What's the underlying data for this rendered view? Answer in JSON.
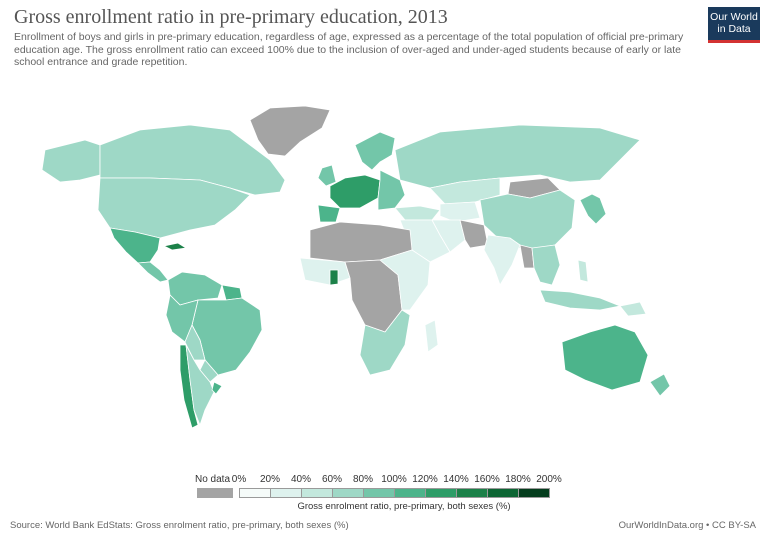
{
  "header": {
    "title": "Gross enrollment ratio in pre-primary education, 2013",
    "subtitle": "Enrollment of boys and girls in pre-primary education, regardless of age, expressed as a percentage of the total population of official pre-primary education age. The gross enrollment ratio can exceed 100% due to the inclusion of over-aged and under-aged students because of early or late school entrance and grade repetition.",
    "logo_line1": "Our World",
    "logo_line2": "in Data"
  },
  "legend": {
    "nodata_label": "No data",
    "tick_labels": [
      "0%",
      "20%",
      "40%",
      "60%",
      "80%",
      "100%",
      "120%",
      "140%",
      "160%",
      "180%",
      "200%"
    ],
    "bin_colors": [
      "#f5fbf9",
      "#def2ee",
      "#c3e8dd",
      "#9ed8c6",
      "#73c6a9",
      "#4cb48b",
      "#2e9d68",
      "#1c8149",
      "#0d6634",
      "#043d1d"
    ],
    "nodata_color": "#a4a4a4",
    "caption": "Gross enrolment ratio, pre-primary, both sexes (%)"
  },
  "footer": {
    "source": "Source: World Bank EdStats: Gross enrolment ratio, pre-primary, both sexes (%)",
    "credit": "OurWorldInData.org • CC BY-SA"
  },
  "colors": {
    "nodata": "#a4a4a4",
    "b0": "#f5fbf9",
    "b1": "#def2ee",
    "b2": "#c3e8dd",
    "b3": "#9ed8c6",
    "b4": "#73c6a9",
    "b5": "#4cb48b",
    "b6": "#2e9d68",
    "b7": "#1c8149"
  },
  "regions": [
    {
      "name": "greenland",
      "bin": "nodata"
    },
    {
      "name": "canada",
      "bin": "b3"
    },
    {
      "name": "usa",
      "bin": "b3"
    },
    {
      "name": "alaska",
      "bin": "b3"
    },
    {
      "name": "mexico",
      "bin": "b5"
    },
    {
      "name": "central-america",
      "bin": "b4"
    },
    {
      "name": "cuba",
      "bin": "b7"
    },
    {
      "name": "colombia-venezuela",
      "bin": "b4"
    },
    {
      "name": "guianas",
      "bin": "b5"
    },
    {
      "name": "brazil",
      "bin": "b4"
    },
    {
      "name": "peru",
      "bin": "b4"
    },
    {
      "name": "bolivia",
      "bin": "b3"
    },
    {
      "name": "paraguay",
      "bin": "b3"
    },
    {
      "name": "argentina",
      "bin": "b3"
    },
    {
      "name": "chile",
      "bin": "b6"
    },
    {
      "name": "uruguay",
      "bin": "b5"
    },
    {
      "name": "russia",
      "bin": "b3"
    },
    {
      "name": "scandinavia",
      "bin": "b4"
    },
    {
      "name": "uk-ireland",
      "bin": "b4"
    },
    {
      "name": "western-europe",
      "bin": "b6"
    },
    {
      "name": "iberia",
      "bin": "b5"
    },
    {
      "name": "eastern-europe",
      "bin": "b4"
    },
    {
      "name": "kazakhstan",
      "bin": "b2"
    },
    {
      "name": "central-asia",
      "bin": "b1"
    },
    {
      "name": "mongolia",
      "bin": "nodata"
    },
    {
      "name": "china",
      "bin": "b3"
    },
    {
      "name": "korea-japan",
      "bin": "b4"
    },
    {
      "name": "turkey-caucasus",
      "bin": "b2"
    },
    {
      "name": "middle-east",
      "bin": "b1"
    },
    {
      "name": "iran",
      "bin": "b1"
    },
    {
      "name": "afghanistan-pakistan",
      "bin": "nodata"
    },
    {
      "name": "india",
      "bin": "b1"
    },
    {
      "name": "southeast-asia",
      "bin": "b3"
    },
    {
      "name": "myanmar",
      "bin": "nodata"
    },
    {
      "name": "indonesia",
      "bin": "b3"
    },
    {
      "name": "philippines",
      "bin": "b2"
    },
    {
      "name": "north-africa",
      "bin": "nodata"
    },
    {
      "name": "west-africa",
      "bin": "b1"
    },
    {
      "name": "ghana",
      "bin": "b7"
    },
    {
      "name": "central-africa",
      "bin": "nodata"
    },
    {
      "name": "east-africa",
      "bin": "b1"
    },
    {
      "name": "southern-africa",
      "bin": "b3"
    },
    {
      "name": "madagascar",
      "bin": "b1"
    },
    {
      "name": "australia",
      "bin": "b5"
    },
    {
      "name": "new-zealand",
      "bin": "b4"
    },
    {
      "name": "papua-new-guinea",
      "bin": "b2"
    }
  ]
}
